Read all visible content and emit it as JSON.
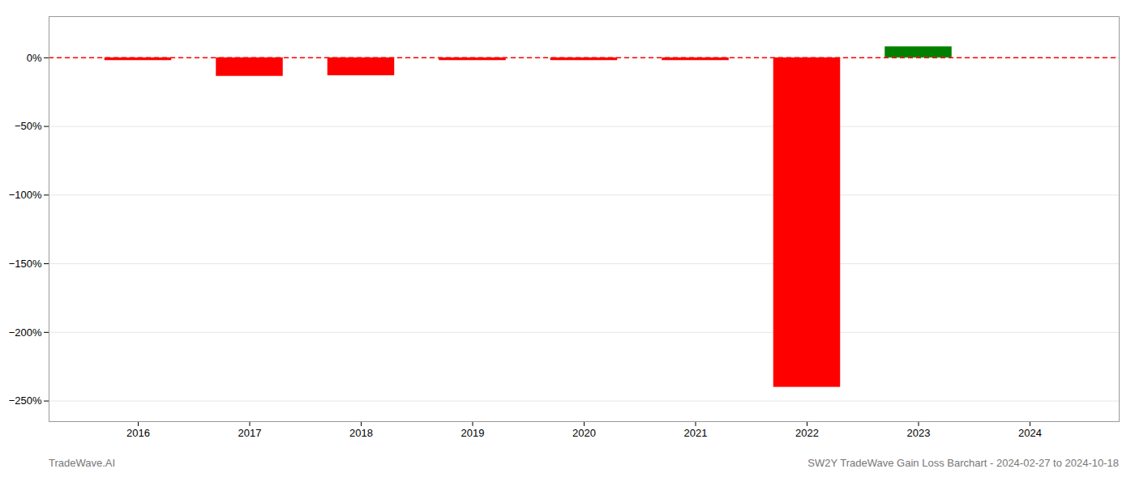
{
  "chart_data": {
    "type": "bar",
    "title": "SW2Y TradeWave Gain Loss Barchart - 2024-02-27 to 2024-10-18",
    "x": [
      2016,
      2017,
      2018,
      2019,
      2020,
      2021,
      2022,
      2023,
      2024
    ],
    "values": [
      -2.0,
      -13.5,
      -13.0,
      -2.0,
      -2.0,
      -2.0,
      -240.0,
      8.0,
      0.0
    ],
    "colors": [
      "red",
      "red",
      "red",
      "red",
      "red",
      "red",
      "red",
      "green",
      "red"
    ],
    "xlim": [
      2015.2,
      2024.8
    ],
    "xticks": [
      2016,
      2017,
      2018,
      2019,
      2020,
      2021,
      2022,
      2023,
      2024
    ],
    "ylim": [
      -265,
      30
    ],
    "yticks": [
      {
        "value": 0,
        "label": "0%"
      },
      {
        "value": -50,
        "label": "−50%"
      },
      {
        "value": -100,
        "label": "−100%"
      },
      {
        "value": -150,
        "label": "−150%"
      },
      {
        "value": -200,
        "label": "−200%"
      },
      {
        "value": -250,
        "label": "−250%"
      }
    ],
    "grid": "y",
    "annotations": [
      {
        "type": "text",
        "text": "TradeWave.AI"
      },
      {
        "type": "hline",
        "y": 0,
        "color": "red",
        "line_style": "dashed"
      }
    ]
  }
}
